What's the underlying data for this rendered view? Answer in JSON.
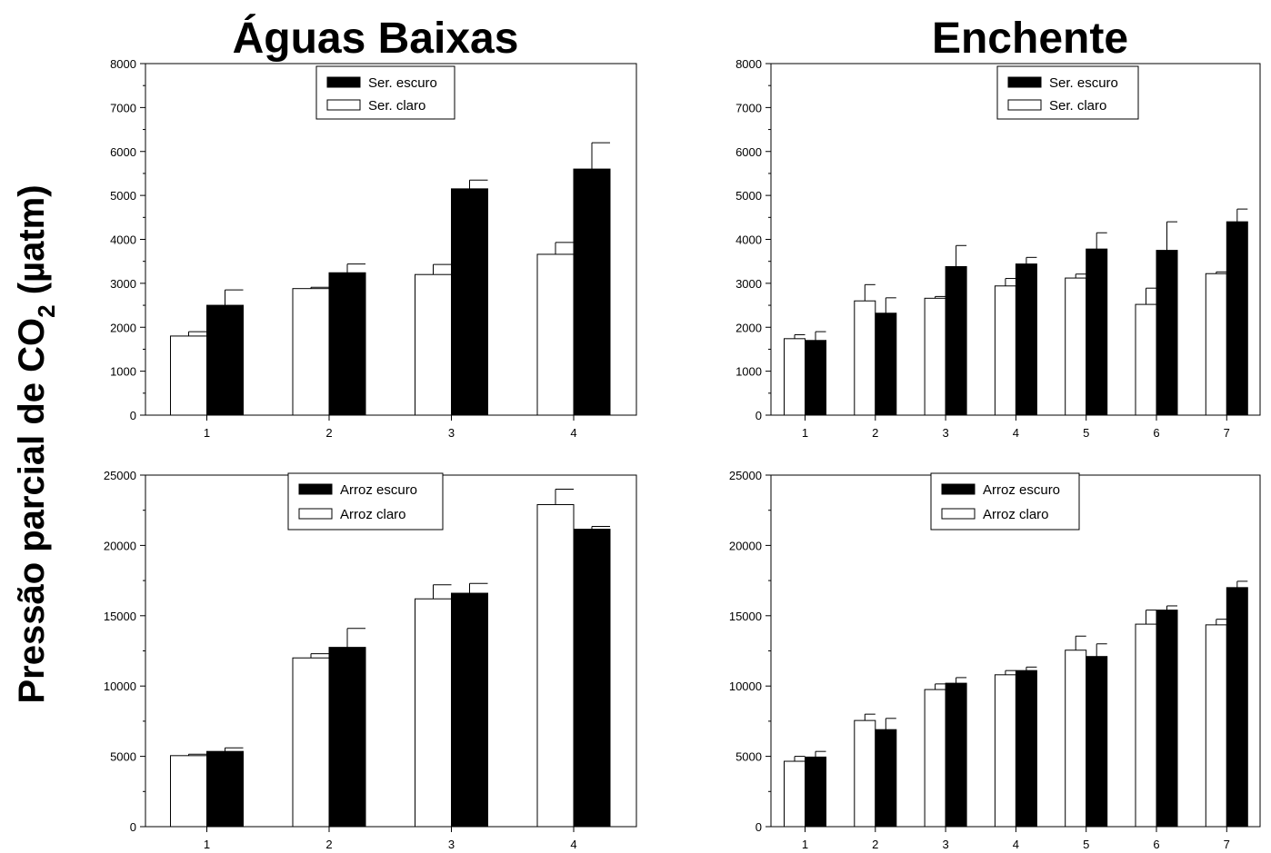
{
  "figure": {
    "ylabel_main": "Pressão parcial de CO",
    "ylabel_sub": "2",
    "ylabel_unit": " (µatm)"
  },
  "chart_data": [
    {
      "type": "bar",
      "title": "Águas Baixas",
      "categories": [
        "1",
        "2",
        "3",
        "4"
      ],
      "ylim": [
        0,
        8000
      ],
      "yticks": [
        "0",
        "1000",
        "2000",
        "3000",
        "4000",
        "5000",
        "6000",
        "7000",
        "8000"
      ],
      "legend_position": "top-center",
      "series": [
        {
          "name": "Ser. escuro",
          "color": "#000000",
          "values": [
            2500,
            3240,
            5150,
            5600
          ],
          "errors": [
            350,
            200,
            200,
            600
          ]
        },
        {
          "name": "Ser. claro",
          "color": "#ffffff",
          "values": [
            1800,
            2880,
            3200,
            3660
          ],
          "errors": [
            100,
            30,
            230,
            270
          ]
        }
      ]
    },
    {
      "type": "bar",
      "title": "Enchente",
      "categories": [
        "1",
        "2",
        "3",
        "4",
        "5",
        "6",
        "7"
      ],
      "ylim": [
        0,
        8000
      ],
      "yticks": [
        "0",
        "1000",
        "2000",
        "3000",
        "4000",
        "5000",
        "6000",
        "7000",
        "8000"
      ],
      "legend_position": "top-right",
      "series": [
        {
          "name": "Ser. escuro",
          "color": "#000000",
          "values": [
            1700,
            2320,
            3380,
            3440,
            3780,
            3750,
            4400
          ],
          "errors": [
            200,
            350,
            480,
            150,
            370,
            650,
            290
          ]
        },
        {
          "name": "Ser. claro",
          "color": "#ffffff",
          "values": [
            1740,
            2600,
            2660,
            2940,
            3120,
            2520,
            3220
          ],
          "errors": [
            90,
            370,
            40,
            170,
            90,
            370,
            40
          ]
        }
      ]
    },
    {
      "type": "bar",
      "title": "",
      "categories": [
        "1",
        "2",
        "3",
        "4"
      ],
      "ylim": [
        0,
        25000
      ],
      "yticks": [
        "0",
        "5000",
        "10000",
        "15000",
        "20000",
        "25000"
      ],
      "legend_position": "top-center",
      "series": [
        {
          "name": "Arroz escuro",
          "color": "#000000",
          "values": [
            5350,
            12750,
            16600,
            21150
          ],
          "errors": [
            250,
            1350,
            700,
            200
          ]
        },
        {
          "name": "Arroz claro",
          "color": "#ffffff",
          "values": [
            5050,
            12000,
            16200,
            22900
          ],
          "errors": [
            100,
            300,
            1000,
            1100
          ]
        }
      ]
    },
    {
      "type": "bar",
      "title": "",
      "categories": [
        "1",
        "2",
        "3",
        "4",
        "5",
        "6",
        "7"
      ],
      "ylim": [
        0,
        25000
      ],
      "yticks": [
        "0",
        "5000",
        "10000",
        "15000",
        "20000",
        "25000"
      ],
      "legend_position": "top-center",
      "series": [
        {
          "name": "Arroz escuro",
          "color": "#000000",
          "values": [
            4950,
            6900,
            10200,
            11100,
            12100,
            15400,
            17000
          ],
          "errors": [
            400,
            800,
            400,
            250,
            900,
            300,
            450
          ]
        },
        {
          "name": "Arroz claro",
          "color": "#ffffff",
          "values": [
            4650,
            7550,
            9750,
            10800,
            12550,
            14400,
            14350
          ],
          "errors": [
            350,
            450,
            400,
            300,
            1000,
            1000,
            400
          ]
        }
      ]
    }
  ]
}
